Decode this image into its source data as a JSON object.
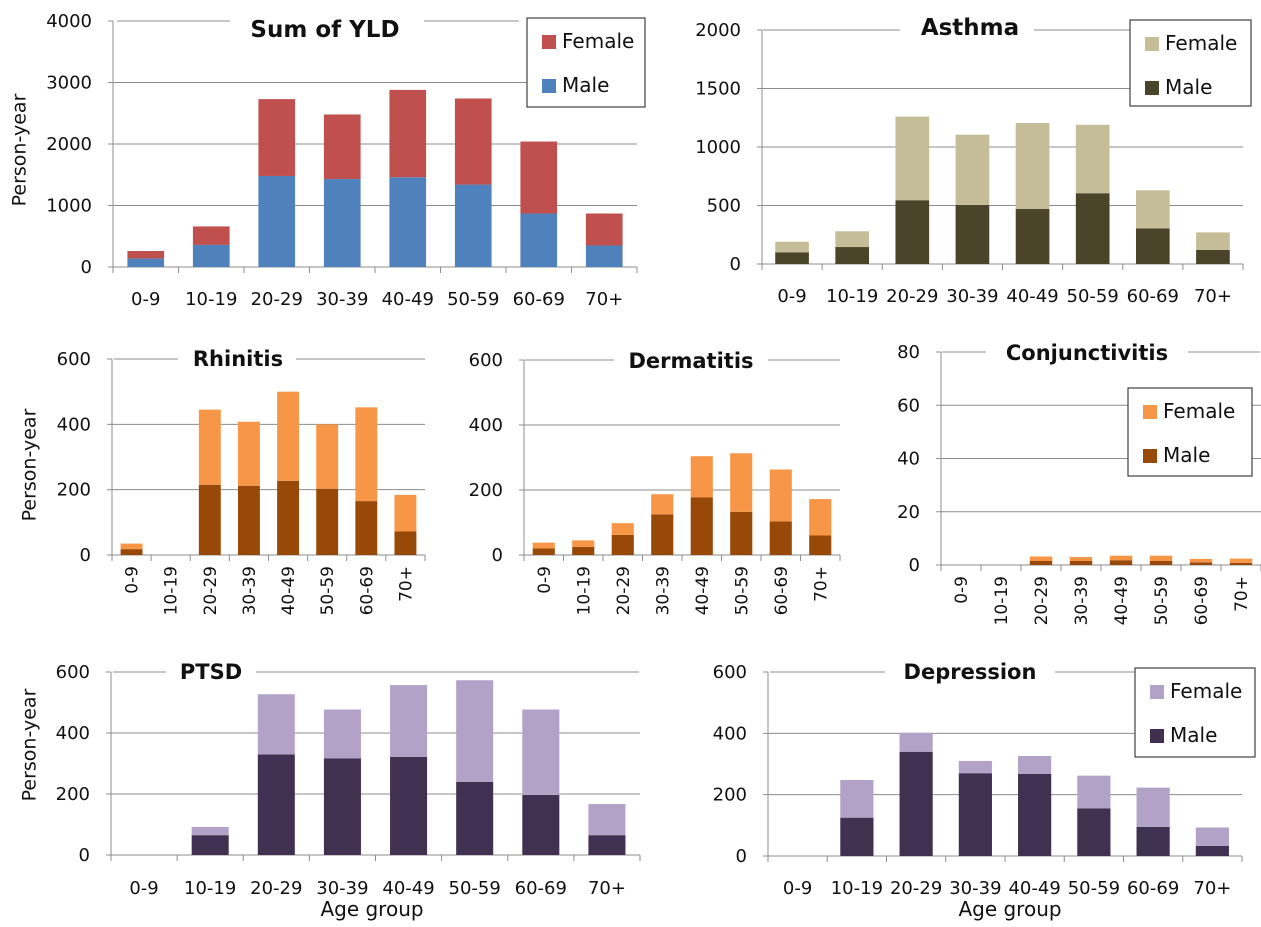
{
  "shared": {
    "ylabel": "Person-year",
    "xlabel": "Age group",
    "legend_female": "Female",
    "legend_male": "Male"
  },
  "chart_data": [
    {
      "id": "yld",
      "type": "bar",
      "stacked": true,
      "title": "Sum of YLD",
      "ylabel": "Person-year",
      "xlabel": "",
      "ylim": [
        0,
        4000
      ],
      "yticks": [
        0,
        1000,
        2000,
        3000,
        4000
      ],
      "categories": [
        "0-9",
        "10-19",
        "20-29",
        "30-39",
        "40-49",
        "50-59",
        "60-69",
        "70+"
      ],
      "rotate_x": false,
      "grid": true,
      "legend": "top-right",
      "colors": {
        "Male": "#4f81bd",
        "Female": "#c0504d"
      },
      "series": [
        {
          "name": "Male",
          "values": [
            140,
            360,
            1480,
            1430,
            1460,
            1340,
            870,
            350
          ]
        },
        {
          "name": "Female",
          "values": [
            120,
            300,
            1250,
            1050,
            1420,
            1400,
            1170,
            520
          ]
        }
      ]
    },
    {
      "id": "asthma",
      "type": "bar",
      "stacked": true,
      "title": "Asthma",
      "ylabel": "",
      "xlabel": "",
      "ylim": [
        0,
        2000
      ],
      "yticks": [
        0,
        500,
        1000,
        1500,
        2000
      ],
      "categories": [
        "0-9",
        "10-19",
        "20-29",
        "30-39",
        "40-49",
        "50-59",
        "60-69",
        "70+"
      ],
      "rotate_x": false,
      "grid": true,
      "legend": "top-right",
      "colors": {
        "Male": "#4a452a",
        "Female": "#c4bd97"
      },
      "series": [
        {
          "name": "Male",
          "values": [
            100,
            145,
            545,
            505,
            470,
            605,
            305,
            120
          ]
        },
        {
          "name": "Female",
          "values": [
            90,
            135,
            715,
            600,
            735,
            585,
            325,
            150
          ]
        }
      ]
    },
    {
      "id": "rhinitis",
      "type": "bar",
      "stacked": true,
      "title": "Rhinitis",
      "ylabel": "Person-year",
      "xlabel": "",
      "ylim": [
        0,
        600
      ],
      "yticks": [
        0,
        200,
        400,
        600
      ],
      "categories": [
        "0-9",
        "10-19",
        "20-29",
        "30-39",
        "40-49",
        "50-59",
        "60-69",
        "70+"
      ],
      "rotate_x": true,
      "grid": true,
      "legend": "none",
      "colors": {
        "Male": "#984807",
        "Female": "#f79646"
      },
      "series": [
        {
          "name": "Male",
          "values": [
            18,
            0,
            215,
            212,
            227,
            203,
            165,
            72
          ]
        },
        {
          "name": "Female",
          "values": [
            17,
            0,
            230,
            196,
            273,
            197,
            287,
            112
          ]
        }
      ]
    },
    {
      "id": "dermatitis",
      "type": "bar",
      "stacked": true,
      "title": "Dermatitis",
      "ylabel": "",
      "xlabel": "",
      "ylim": [
        0,
        600
      ],
      "yticks": [
        0,
        200,
        400,
        600
      ],
      "categories": [
        "0-9",
        "10-19",
        "20-29",
        "30-39",
        "40-49",
        "50-59",
        "60-69",
        "70+"
      ],
      "rotate_x": true,
      "grid": true,
      "legend": "none",
      "colors": {
        "Male": "#984807",
        "Female": "#f79646"
      },
      "series": [
        {
          "name": "Male",
          "values": [
            20,
            25,
            62,
            125,
            177,
            133,
            103,
            60
          ]
        },
        {
          "name": "Female",
          "values": [
            18,
            20,
            36,
            62,
            127,
            180,
            160,
            112
          ]
        }
      ]
    },
    {
      "id": "conjunctivitis",
      "type": "bar",
      "stacked": true,
      "title": "Conjunctivitis",
      "ylabel": "",
      "xlabel": "",
      "ylim": [
        0,
        80
      ],
      "yticks": [
        0,
        20,
        40,
        60,
        80
      ],
      "categories": [
        "0-9",
        "10-19",
        "20-29",
        "30-39",
        "40-49",
        "50-59",
        "60-69",
        "70+"
      ],
      "rotate_x": true,
      "grid": true,
      "legend": "top-right",
      "colors": {
        "Male": "#984807",
        "Female": "#f79646"
      },
      "series": [
        {
          "name": "Male",
          "values": [
            0,
            0,
            1.5,
            1.5,
            1.8,
            1.5,
            1.0,
            0.8
          ]
        },
        {
          "name": "Female",
          "values": [
            0,
            0,
            1.7,
            1.5,
            1.7,
            2.0,
            1.3,
            1.6
          ]
        }
      ]
    },
    {
      "id": "ptsd",
      "type": "bar",
      "stacked": true,
      "title": "PTSD",
      "ylabel": "Person-year",
      "xlabel": "Age group",
      "ylim": [
        0,
        600
      ],
      "yticks": [
        0,
        200,
        400,
        600
      ],
      "categories": [
        "0-9",
        "10-19",
        "20-29",
        "30-39",
        "40-49",
        "50-59",
        "60-69",
        "70+"
      ],
      "rotate_x": false,
      "grid": true,
      "legend": "none",
      "colors": {
        "Male": "#403151",
        "Female": "#b2a2c7"
      },
      "series": [
        {
          "name": "Male",
          "values": [
            0,
            65,
            330,
            317,
            322,
            240,
            197,
            65
          ]
        },
        {
          "name": "Female",
          "values": [
            0,
            27,
            197,
            160,
            235,
            333,
            280,
            102
          ]
        }
      ]
    },
    {
      "id": "depression",
      "type": "bar",
      "stacked": true,
      "title": "Depression",
      "ylabel": "",
      "xlabel": "Age group",
      "ylim": [
        0,
        600
      ],
      "yticks": [
        0,
        200,
        400,
        600
      ],
      "categories": [
        "0-9",
        "10-19",
        "20-29",
        "30-39",
        "40-49",
        "50-59",
        "60-69",
        "70+"
      ],
      "rotate_x": false,
      "grid": true,
      "legend": "top-right",
      "colors": {
        "Male": "#403151",
        "Female": "#b2a2c7"
      },
      "series": [
        {
          "name": "Male",
          "values": [
            0,
            125,
            340,
            270,
            268,
            155,
            95,
            33
          ]
        },
        {
          "name": "Female",
          "values": [
            0,
            123,
            62,
            40,
            58,
            107,
            128,
            60
          ]
        }
      ]
    }
  ]
}
